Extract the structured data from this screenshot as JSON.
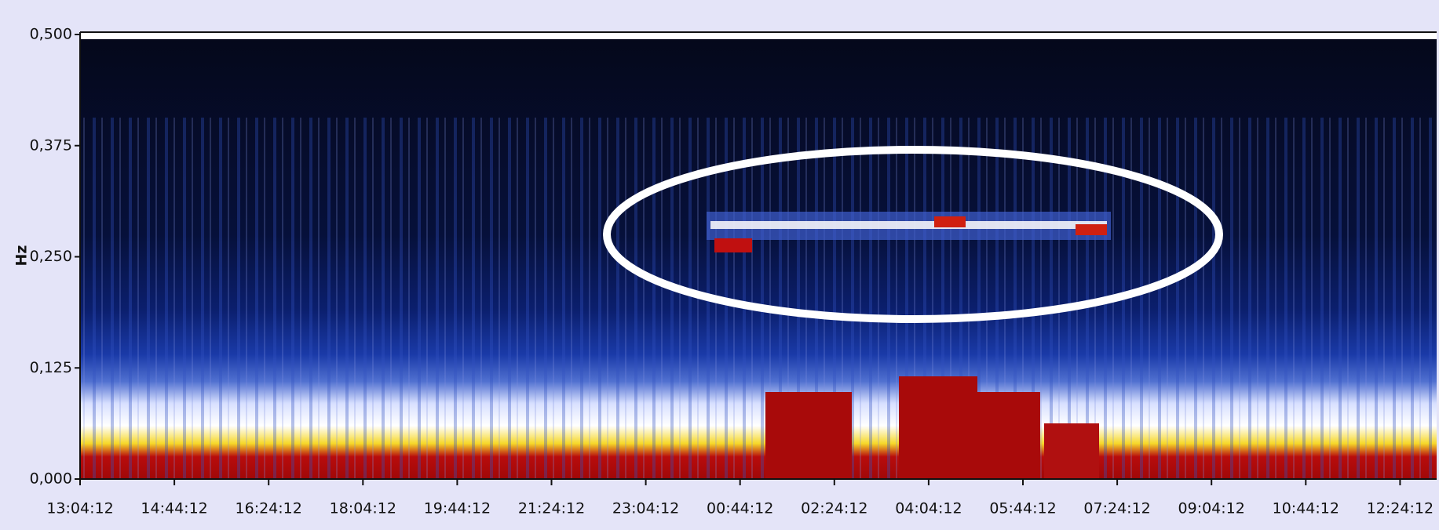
{
  "chart_data": {
    "type": "spectrogram",
    "y_label": "Hz",
    "categories": [
      "13:04:12",
      "14:44:12",
      "16:24:12",
      "18:04:12",
      "19:44:12",
      "21:24:12",
      "23:04:12",
      "00:44:12",
      "02:24:12",
      "04:04:12",
      "05:44:12",
      "07:24:12",
      "09:04:12",
      "10:44:12",
      "12:24:12"
    ],
    "ylim": [
      0,
      0.5
    ],
    "yticks": [
      {
        "value": 0,
        "label": "0,000"
      },
      {
        "value": 0.125,
        "label": "0,125"
      },
      {
        "value": 0.25,
        "label": "0,250"
      },
      {
        "value": 0.375,
        "label": "0,375"
      },
      {
        "value": 0.5,
        "label": "0,500"
      }
    ]
  }
}
